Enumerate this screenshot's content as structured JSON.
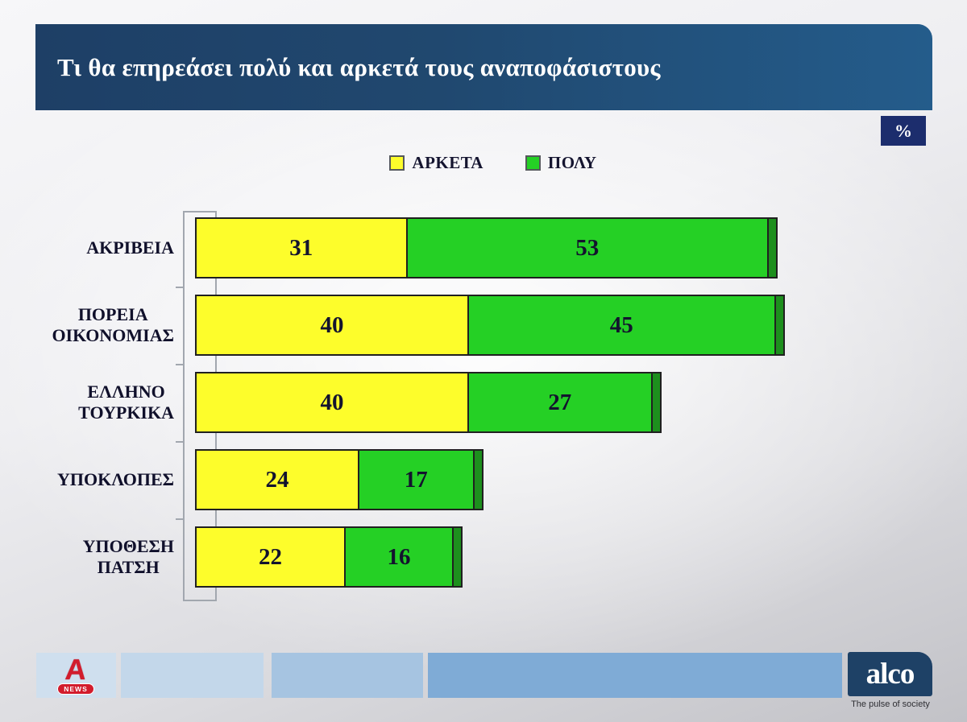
{
  "title": "Τι θα επηρεάσει πολύ και αρκετά τους αναποφάσιστους",
  "unit_badge": "%",
  "legend": [
    {
      "label": "ΑΡΚΕΤΑ",
      "color": "#fdfd2b"
    },
    {
      "label": "ΠΟΛΥ",
      "color": "#25d025"
    }
  ],
  "chart_data": {
    "type": "bar",
    "orientation": "horizontal",
    "stacked": true,
    "title": "Τι θα επηρεάσει πολύ και αρκετά τους αναποφάσιστους",
    "unit": "%",
    "xlim": [
      0,
      100
    ],
    "grid": false,
    "legend_position": "top-center",
    "categories": [
      "ΑΚΡΙΒΕΙΑ",
      "ΠΟΡΕΙΑ ΟΙΚΟΝΟΜΙΑΣ",
      "ΕΛΛΗΝΟ ΤΟΥΡΚΙΚΑ",
      "ΥΠΟΚΛΟΠΕΣ",
      "ΥΠΟΘΕΣΗ ΠΑΤΣΗ"
    ],
    "category_lines": [
      [
        "ΑΚΡΙΒΕΙΑ"
      ],
      [
        "ΠΟΡΕΙΑ",
        "ΟΙΚΟΝΟΜΙΑΣ"
      ],
      [
        "ΕΛΛΗΝΟ",
        "ΤΟΥΡΚΙΚΑ"
      ],
      [
        "ΥΠΟΚΛΟΠΕΣ"
      ],
      [
        "ΥΠΟΘΕΣΗ",
        "ΠΑΤΣΗ"
      ]
    ],
    "series": [
      {
        "name": "ΑΡΚΕΤΑ",
        "color": "#fdfd2b",
        "values": [
          31,
          40,
          40,
          24,
          22
        ]
      },
      {
        "name": "ΠΟΛΥ",
        "color": "#25d025",
        "cap_color": "#1d8f1d",
        "values": [
          53,
          45,
          27,
          17,
          16
        ]
      }
    ]
  },
  "footer": {
    "alpha_news": {
      "letter": "Α",
      "label": "NEWS"
    },
    "alco": {
      "wordmark": "alco",
      "tagline": "The pulse of society"
    }
  },
  "colors": {
    "title_bar_from": "#1e3f66",
    "title_bar_to": "#245c8b",
    "badge_bg": "#1c2d6d",
    "bar_border": "#202020",
    "arketa_yellow": "#fdfd2b",
    "poly_green": "#25d025",
    "poly_cap_green": "#1d8f1d",
    "alpha_red": "#d21c2c",
    "alco_navy": "#1e4166",
    "footer_blues": [
      "#cfdfee",
      "#c3d7ea",
      "#a6c4e1",
      "#7fabd6"
    ]
  }
}
